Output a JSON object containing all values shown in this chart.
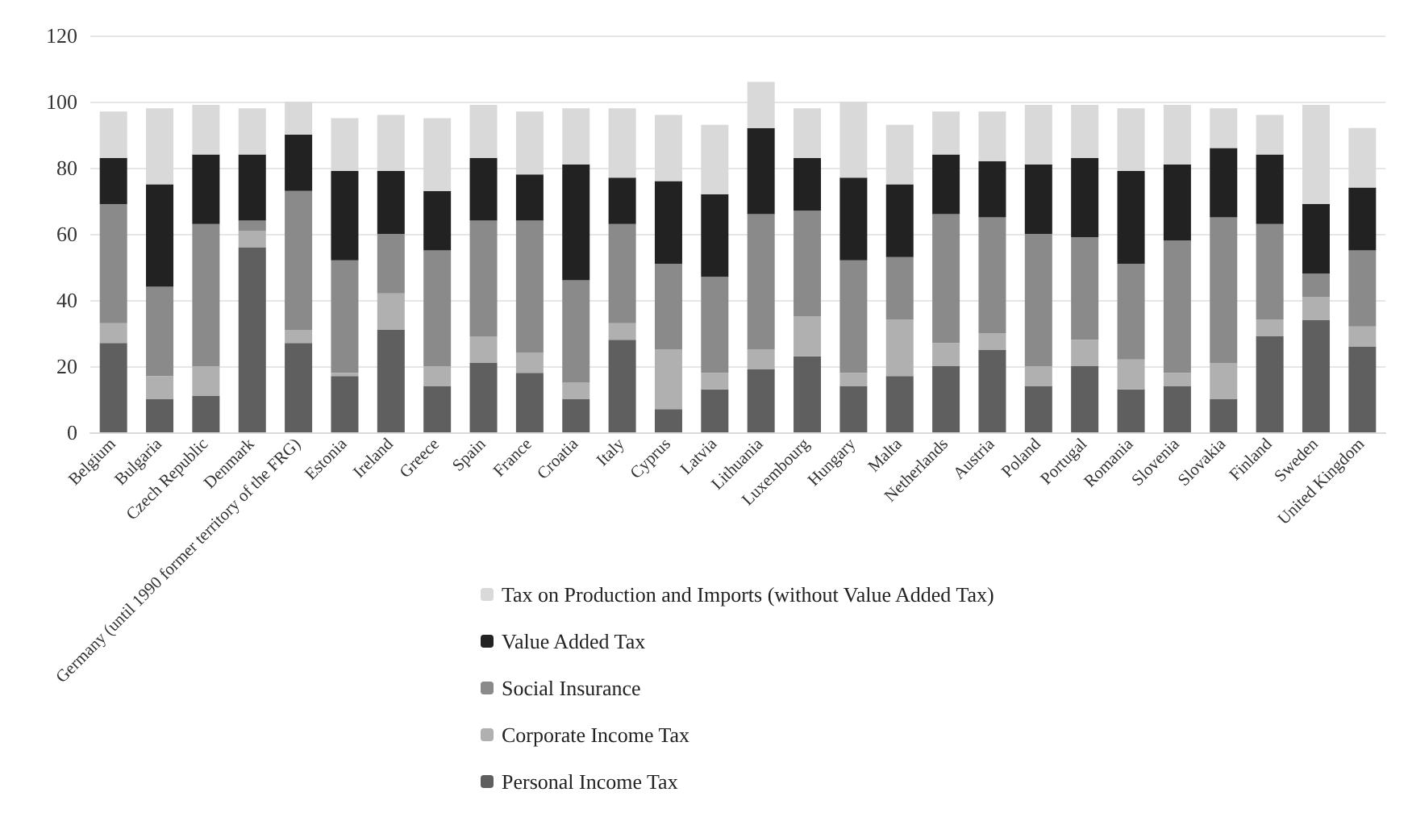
{
  "chart_data": {
    "type": "bar",
    "stacked": true,
    "categories": [
      "Belgium",
      "Bulgaria",
      "Czech Republic",
      "Denmark",
      "Germany (until 1990 former territory of the FRG)",
      "Estonia",
      "Ireland",
      "Greece",
      "Spain",
      "France",
      "Croatia",
      "Italy",
      "Cyprus",
      "Latvia",
      "Lithuania",
      "Luxembourg",
      "Hungary",
      "Malta",
      "Netherlands",
      "Austria",
      "Poland",
      "Portugal",
      "Romania",
      "Slovenia",
      "Slovakia",
      "Finland",
      "Sweden",
      "United Kingdom"
    ],
    "series": [
      {
        "name": "Personal Income Tax",
        "color": "#5f5f5f",
        "values": [
          27,
          10,
          11,
          56,
          27,
          17,
          31,
          14,
          21,
          18,
          10,
          28,
          7,
          13,
          19,
          23,
          14,
          17,
          20,
          25,
          14,
          20,
          13,
          14,
          10,
          29,
          34,
          26
        ]
      },
      {
        "name": "Corporate Income Tax",
        "color": "#b0b0b0",
        "values": [
          6,
          7,
          9,
          5,
          4,
          1,
          11,
          6,
          8,
          6,
          5,
          5,
          18,
          5,
          6,
          12,
          4,
          17,
          7,
          5,
          6,
          8,
          9,
          4,
          11,
          5,
          7,
          6
        ]
      },
      {
        "name": "Social Insurance",
        "color": "#8a8a8a",
        "values": [
          36,
          27,
          43,
          3,
          42,
          34,
          18,
          35,
          35,
          40,
          31,
          30,
          26,
          29,
          41,
          32,
          34,
          19,
          39,
          35,
          40,
          31,
          29,
          40,
          44,
          29,
          7,
          23
        ]
      },
      {
        "name": "Value Added Tax",
        "color": "#222222",
        "values": [
          14,
          31,
          21,
          20,
          17,
          27,
          19,
          18,
          19,
          14,
          35,
          14,
          25,
          25,
          26,
          16,
          25,
          22,
          18,
          17,
          21,
          24,
          28,
          23,
          21,
          21,
          21,
          19
        ]
      },
      {
        "name": "Tax on Production and Imports (without Value Added Tax)",
        "color": "#d9d9d9",
        "values": [
          14,
          23,
          15,
          14,
          10,
          16,
          17,
          22,
          16,
          19,
          17,
          21,
          20,
          21,
          14,
          15,
          23,
          18,
          13,
          15,
          18,
          16,
          19,
          18,
          12,
          12,
          30,
          18
        ]
      }
    ],
    "ylim": [
      0,
      120
    ],
    "yticks": [
      0,
      20,
      40,
      60,
      80,
      100,
      120
    ],
    "grid": "y",
    "legend": "bottom"
  }
}
